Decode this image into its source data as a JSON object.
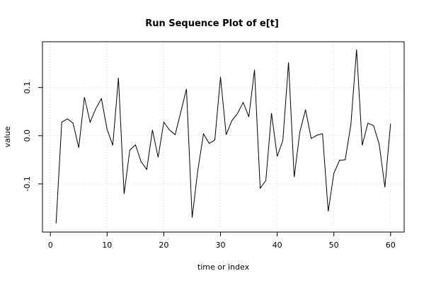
{
  "chart_data": {
    "type": "line",
    "title": "Run Sequence Plot of e[t]",
    "xlabel": "time or index",
    "ylabel": "value",
    "xlim": [
      -1.4,
      62.4
    ],
    "ylim": [
      -0.2,
      0.195
    ],
    "x_ticks": [
      0,
      10,
      20,
      30,
      40,
      50,
      60
    ],
    "x_tick_labels": [
      "0",
      "10",
      "20",
      "30",
      "40",
      "50",
      "60"
    ],
    "y_ticks": [
      -0.1,
      0.0,
      0.1
    ],
    "y_tick_labels": [
      "-0.1",
      "0.0",
      "0.1"
    ],
    "grid": true,
    "colors": {
      "series": "#000000",
      "grid": "#d9d9d9",
      "frame": "#000000"
    },
    "x": [
      1,
      2,
      3,
      4,
      5,
      6,
      7,
      8,
      9,
      10,
      11,
      12,
      13,
      14,
      15,
      16,
      17,
      18,
      19,
      20,
      21,
      22,
      23,
      24,
      25,
      26,
      27,
      28,
      29,
      30,
      31,
      32,
      33,
      34,
      35,
      36,
      37,
      38,
      39,
      40,
      41,
      42,
      43,
      44,
      45,
      46,
      47,
      48,
      49,
      50,
      51,
      52,
      53,
      54,
      55,
      56,
      57,
      58,
      59,
      60
    ],
    "values": [
      -0.182,
      0.028,
      0.035,
      0.026,
      -0.025,
      0.08,
      0.028,
      0.056,
      0.077,
      0.013,
      -0.02,
      0.12,
      -0.121,
      -0.03,
      -0.019,
      -0.054,
      -0.07,
      0.012,
      -0.045,
      0.028,
      0.012,
      0.002,
      0.049,
      0.097,
      -0.17,
      -0.072,
      0.004,
      -0.016,
      -0.009,
      0.122,
      0.002,
      0.031,
      0.046,
      0.069,
      0.039,
      0.137,
      -0.109,
      -0.093,
      0.047,
      -0.043,
      -0.01,
      0.152,
      -0.086,
      0.008,
      0.054,
      -0.006,
      0.001,
      0.004,
      -0.157,
      -0.078,
      -0.051,
      -0.05,
      0.023,
      0.179,
      -0.02,
      0.026,
      0.021,
      -0.018,
      -0.107,
      0.025
    ]
  }
}
